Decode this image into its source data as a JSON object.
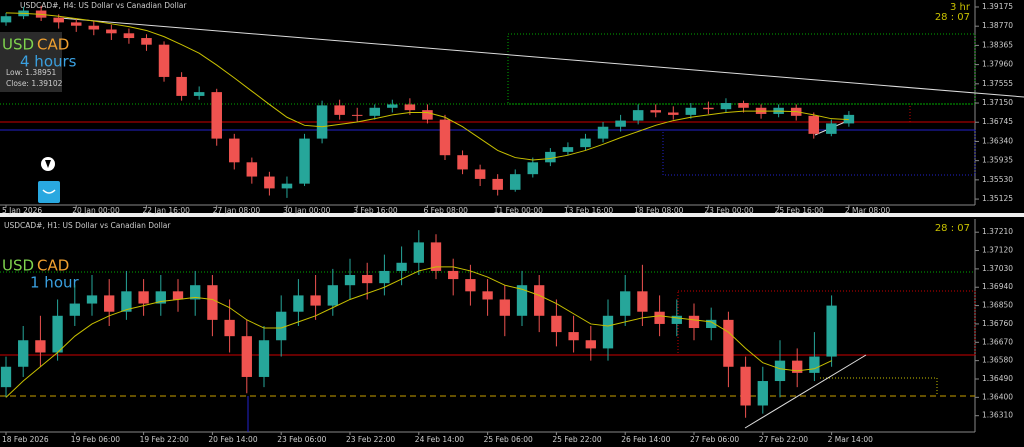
{
  "chart_data": [
    {
      "type": "candlestick",
      "title": "USDCAD#, H4:  US Dollar vs Canadian Dollar",
      "symbol_parts": [
        "USD",
        "CAD"
      ],
      "timeframe_label": "4 hours",
      "info": [
        "Low: 1.38951",
        "Close: 1.39102"
      ],
      "timer": [
        "3 hr",
        "28 : 07"
      ],
      "categories": [
        "5 Jan 2026",
        null,
        null,
        null,
        "20 Jan 00:00",
        null,
        null,
        null,
        "22 Jan 16:00",
        null,
        null,
        null,
        "27 Jan 08:00",
        null,
        null,
        null,
        "30 Jan 00:00",
        null,
        null,
        null,
        "3 Feb 16:00",
        null,
        null,
        null,
        "6 Feb 08:00",
        null,
        null,
        null,
        "11 Feb 00:00",
        null,
        null,
        null,
        "13 Feb 16:00",
        null,
        null,
        null,
        "18 Feb 08:00",
        null,
        null,
        null,
        "23 Feb 00:00",
        null,
        null,
        null,
        "25 Feb 16:00",
        null,
        null,
        null,
        "2 Mar 08:00"
      ],
      "open": [
        1.3885,
        1.3898,
        1.391,
        1.3895,
        1.3885,
        1.3878,
        1.387,
        1.3862,
        1.3852,
        1.3838,
        1.377,
        1.373,
        1.3738,
        1.364,
        1.359,
        1.356,
        1.3535,
        1.3545,
        1.364,
        1.371,
        1.369,
        1.3688,
        1.3705,
        1.3712,
        1.37,
        1.368,
        1.3605,
        1.3575,
        1.3555,
        1.3532,
        1.3565,
        1.359,
        1.3612,
        1.3622,
        1.364,
        1.3665,
        1.3678,
        1.37,
        1.3695,
        1.369,
        1.3705,
        1.3702,
        1.3715,
        1.3705,
        1.3692,
        1.3705,
        1.3688,
        1.365,
        1.3672
      ],
      "high": [
        1.3905,
        1.3918,
        1.392,
        1.3902,
        1.3893,
        1.3888,
        1.388,
        1.3872,
        1.386,
        1.3845,
        1.378,
        1.375,
        1.3745,
        1.365,
        1.36,
        1.357,
        1.356,
        1.365,
        1.372,
        1.3722,
        1.3705,
        1.3712,
        1.3722,
        1.3725,
        1.3712,
        1.369,
        1.3615,
        1.3585,
        1.3565,
        1.3575,
        1.36,
        1.362,
        1.3632,
        1.365,
        1.3675,
        1.369,
        1.3712,
        1.3712,
        1.3708,
        1.3715,
        1.3718,
        1.3725,
        1.372,
        1.3712,
        1.3712,
        1.3712,
        1.3695,
        1.368,
        1.3698
      ],
      "low": [
        1.3878,
        1.3892,
        1.3888,
        1.3872,
        1.3865,
        1.3858,
        1.3848,
        1.384,
        1.3825,
        1.376,
        1.372,
        1.3722,
        1.3625,
        1.3575,
        1.3545,
        1.352,
        1.3515,
        1.354,
        1.363,
        1.368,
        1.3675,
        1.368,
        1.3695,
        1.369,
        1.3672,
        1.3595,
        1.3565,
        1.354,
        1.352,
        1.3528,
        1.3558,
        1.3582,
        1.3605,
        1.3615,
        1.3632,
        1.3655,
        1.367,
        1.3685,
        1.368,
        1.3682,
        1.3692,
        1.3695,
        1.3695,
        1.3682,
        1.3685,
        1.3678,
        1.364,
        1.3645,
        1.3665
      ],
      "close": [
        1.3898,
        1.391,
        1.3895,
        1.3885,
        1.3878,
        1.387,
        1.3862,
        1.3852,
        1.3838,
        1.377,
        1.373,
        1.3738,
        1.364,
        1.359,
        1.356,
        1.3535,
        1.3545,
        1.364,
        1.371,
        1.369,
        1.3688,
        1.3705,
        1.3712,
        1.37,
        1.368,
        1.3605,
        1.3575,
        1.3555,
        1.3532,
        1.3565,
        1.359,
        1.3612,
        1.3622,
        1.364,
        1.3665,
        1.3678,
        1.37,
        1.3695,
        1.369,
        1.3705,
        1.3702,
        1.3715,
        1.3705,
        1.3692,
        1.3705,
        1.3688,
        1.365,
        1.3672,
        1.369
      ],
      "ma": {
        "color": "#c8c000",
        "values": [
          1.3905,
          1.3904,
          1.3902,
          1.3898,
          1.3893,
          1.3888,
          1.3882,
          1.3876,
          1.3868,
          1.3855,
          1.3838,
          1.382,
          1.3795,
          1.3768,
          1.374,
          1.3712,
          1.3685,
          1.3668,
          1.3665,
          1.367,
          1.3675,
          1.3682,
          1.369,
          1.3695,
          1.3695,
          1.3685,
          1.3665,
          1.364,
          1.3615,
          1.36,
          1.3595,
          1.3598,
          1.3605,
          1.3615,
          1.3628,
          1.3642,
          1.3655,
          1.3668,
          1.3678,
          1.3685,
          1.369,
          1.3695,
          1.3698,
          1.3698,
          1.3698,
          1.3697,
          1.369,
          1.3682,
          1.368
        ]
      },
      "up_color": "#26a69a",
      "down_color": "#ef5350",
      "ylim": [
        1.35,
        1.3928
      ],
      "yticks": [
        1.39175,
        {
          "value": 1.3877,
          "label": "1.38770"
        },
        1.38365,
        {
          "value": 1.3796,
          "label": "1.37960"
        },
        1.37555,
        {
          "value": 1.3715,
          "label": "1.37150"
        },
        1.36745,
        {
          "value": 1.3634,
          "label": "1.36340"
        },
        1.35935,
        {
          "value": 1.3553,
          "label": "1.35530"
        },
        1.35125
      ]
    },
    {
      "type": "candlestick",
      "title": "USDCAD#, H1:  US Dollar vs Canadian Dollar",
      "symbol_parts": [
        "USD",
        "CAD"
      ],
      "timeframe_label": "1 hour",
      "timer": [
        "28 : 07"
      ],
      "categories": [
        "18 Feb 2026",
        null,
        null,
        null,
        "19 Feb 06:00",
        null,
        null,
        null,
        "19 Feb 22:00",
        null,
        null,
        null,
        "20 Feb 14:00",
        null,
        null,
        null,
        "23 Feb 06:00",
        null,
        null,
        null,
        "23 Feb 22:00",
        null,
        null,
        null,
        "24 Feb 14:00",
        null,
        null,
        null,
        "25 Feb 06:00",
        null,
        null,
        null,
        "25 Feb 22:00",
        null,
        null,
        null,
        "26 Feb 14:00",
        null,
        null,
        null,
        "27 Feb 06:00",
        null,
        null,
        null,
        "27 Feb 22:00",
        null,
        null,
        null,
        "2 Mar 14:00"
      ],
      "open": [
        1.3645,
        1.3655,
        1.3668,
        1.3662,
        1.368,
        1.3686,
        1.369,
        1.3682,
        1.3692,
        1.3686,
        1.3692,
        1.3688,
        1.3695,
        1.3678,
        1.367,
        1.365,
        1.3668,
        1.3682,
        1.369,
        1.3685,
        1.3695,
        1.37,
        1.3696,
        1.3702,
        1.3706,
        1.3716,
        1.3702,
        1.3698,
        1.3692,
        1.3688,
        1.368,
        1.3695,
        1.368,
        1.3672,
        1.3668,
        1.3664,
        1.368,
        1.3692,
        1.3682,
        1.3676,
        1.368,
        1.3674,
        1.3678,
        1.3655,
        1.3636,
        1.3648,
        1.3658,
        1.3652,
        1.366
      ],
      "high": [
        1.366,
        1.3675,
        1.368,
        1.3688,
        1.3695,
        1.37,
        1.3698,
        1.3702,
        1.3698,
        1.37,
        1.3698,
        1.3702,
        1.37,
        1.3688,
        1.3678,
        1.3675,
        1.369,
        1.3698,
        1.37,
        1.3703,
        1.3708,
        1.3706,
        1.371,
        1.3714,
        1.3722,
        1.372,
        1.3708,
        1.3705,
        1.3698,
        1.3695,
        1.3702,
        1.37,
        1.3688,
        1.368,
        1.3675,
        1.3688,
        1.37,
        1.3705,
        1.369,
        1.3688,
        1.3686,
        1.3684,
        1.3682,
        1.366,
        1.3655,
        1.3668,
        1.3664,
        1.3672,
        1.369
      ],
      "low": [
        1.364,
        1.365,
        1.3655,
        1.3658,
        1.3675,
        1.368,
        1.3675,
        1.3678,
        1.368,
        1.368,
        1.3682,
        1.368,
        1.367,
        1.3662,
        1.3642,
        1.3645,
        1.366,
        1.3675,
        1.3678,
        1.368,
        1.3688,
        1.3688,
        1.369,
        1.3695,
        1.37,
        1.3698,
        1.369,
        1.3685,
        1.368,
        1.367,
        1.3675,
        1.3672,
        1.3665,
        1.3662,
        1.3658,
        1.3658,
        1.3675,
        1.3675,
        1.367,
        1.367,
        1.3668,
        1.3668,
        1.3645,
        1.363,
        1.3632,
        1.364,
        1.3645,
        1.3648,
        1.3655
      ],
      "close": [
        1.3655,
        1.3668,
        1.3662,
        1.368,
        1.3686,
        1.369,
        1.3682,
        1.3692,
        1.3686,
        1.3692,
        1.3688,
        1.3695,
        1.3678,
        1.367,
        1.365,
        1.3668,
        1.3682,
        1.369,
        1.3685,
        1.3695,
        1.37,
        1.3696,
        1.3702,
        1.3706,
        1.3716,
        1.3702,
        1.3698,
        1.3692,
        1.3688,
        1.368,
        1.3695,
        1.368,
        1.3672,
        1.3668,
        1.3664,
        1.368,
        1.3692,
        1.3682,
        1.3676,
        1.368,
        1.3674,
        1.3678,
        1.3655,
        1.3636,
        1.3648,
        1.3658,
        1.3652,
        1.366,
        1.3685
      ],
      "ma": {
        "color": "#c8c000",
        "values": [
          1.364,
          1.3648,
          1.3655,
          1.3662,
          1.367,
          1.3676,
          1.368,
          1.3683,
          1.3685,
          1.3687,
          1.3688,
          1.3689,
          1.3688,
          1.3684,
          1.3678,
          1.3674,
          1.3674,
          1.3677,
          1.368,
          1.3684,
          1.3688,
          1.3691,
          1.3694,
          1.3698,
          1.3702,
          1.3704,
          1.3704,
          1.3702,
          1.3699,
          1.3695,
          1.3693,
          1.369,
          1.3686,
          1.3681,
          1.3676,
          1.3675,
          1.3677,
          1.3679,
          1.368,
          1.3679,
          1.3678,
          1.3677,
          1.3672,
          1.3664,
          1.3657,
          1.3654,
          1.3653,
          1.3654,
          1.3658
        ]
      },
      "up_color": "#26a69a",
      "down_color": "#ef5350",
      "ylim": [
        1.3623,
        1.3726
      ],
      "yticks": [
        {
          "value": 1.3721,
          "label": "1.37210"
        },
        {
          "value": 1.3712,
          "label": "1.37120"
        },
        {
          "value": 1.3703,
          "label": "1.37030"
        },
        {
          "value": 1.3694,
          "label": "1.36940"
        },
        {
          "value": 1.3685,
          "label": "1.36850"
        },
        {
          "value": 1.3676,
          "label": "1.36760"
        },
        {
          "value": 1.3667,
          "label": "1.36670"
        },
        {
          "value": 1.3658,
          "label": "1.36580"
        },
        {
          "value": 1.3649,
          "label": "1.36490"
        },
        {
          "value": 1.364,
          "label": "1.36400"
        },
        {
          "value": 1.3631,
          "label": "1.36310"
        }
      ]
    }
  ]
}
